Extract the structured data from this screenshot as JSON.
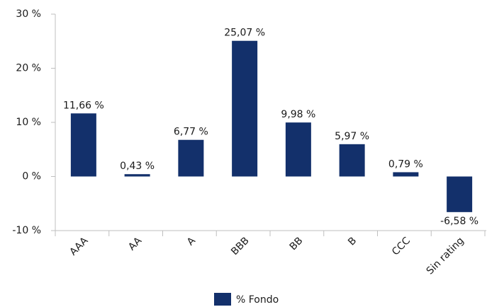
{
  "chart_data": {
    "type": "bar",
    "categories": [
      "AAA",
      "AA",
      "A",
      "BBB",
      "BB",
      "B",
      "CCC",
      "Sin rating"
    ],
    "series": [
      {
        "name": "% Fondo",
        "color": "#13306b",
        "values": [
          11.66,
          0.43,
          6.77,
          25.07,
          9.98,
          5.97,
          0.79,
          -6.58
        ],
        "value_labels": [
          "11,66 %",
          "0,43 %",
          "6,77 %",
          "25,07 %",
          "9,98 %",
          "5,97 %",
          "0,79 %",
          "-6,58 %"
        ]
      }
    ],
    "ylim": [
      -10,
      30
    ],
    "yticks": [
      {
        "value": -10,
        "label": "-10 %"
      },
      {
        "value": 0,
        "label": "0 %"
      },
      {
        "value": 10,
        "label": "10 %"
      },
      {
        "value": 20,
        "label": "20 %"
      },
      {
        "value": 30,
        "label": "30 %"
      }
    ],
    "grid": false,
    "legend": "bottom"
  }
}
